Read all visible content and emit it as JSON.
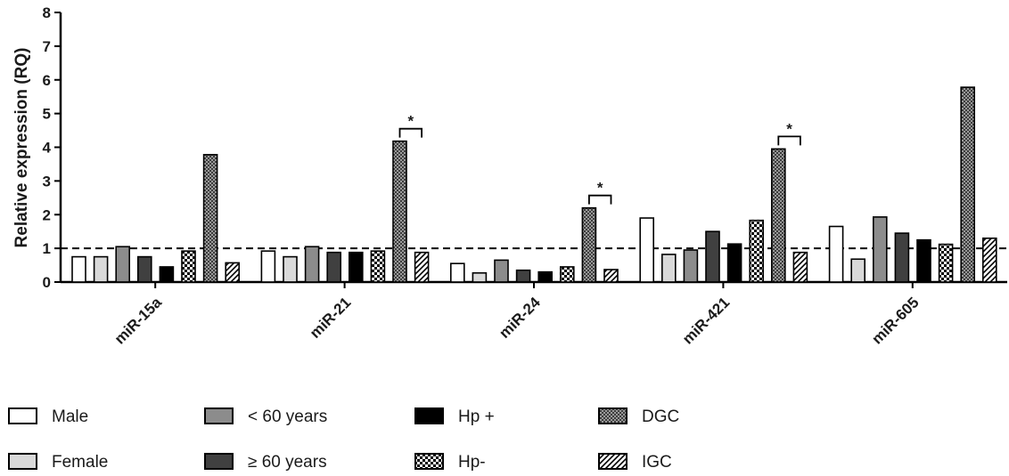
{
  "chart_data": {
    "type": "bar",
    "ylabel": "Relative expression (RQ)",
    "xlabel": "",
    "ylim": [
      0,
      8
    ],
    "yticks": [
      "0",
      "1",
      "2",
      "3",
      "4",
      "5",
      "6",
      "7",
      "8"
    ],
    "reference_line": 1,
    "categories": [
      "miR-15a",
      "miR-21",
      "miR-24",
      "miR-421",
      "miR-605"
    ],
    "series": [
      {
        "name": "Male",
        "values": [
          0.75,
          0.92,
          0.55,
          1.9,
          1.65
        ],
        "fill": "#ffffff",
        "pattern": "none"
      },
      {
        "name": "Female",
        "values": [
          0.75,
          0.75,
          0.27,
          0.82,
          0.68
        ],
        "fill": "#d9d9d9",
        "pattern": "none"
      },
      {
        "name": "< 60 years",
        "values": [
          1.05,
          1.05,
          0.65,
          0.95,
          1.93
        ],
        "fill": "#8c8c8c",
        "pattern": "none"
      },
      {
        "name": "≥ 60 years",
        "values": [
          0.75,
          0.88,
          0.35,
          1.5,
          1.45
        ],
        "fill": "#404040",
        "pattern": "none"
      },
      {
        "name": "Hp +",
        "values": [
          0.45,
          0.88,
          0.3,
          1.13,
          1.25
        ],
        "fill": "#000000",
        "pattern": "none"
      },
      {
        "name": "Hp-",
        "values": [
          0.92,
          0.92,
          0.45,
          1.83,
          1.12
        ],
        "fill": "#ffffff",
        "pattern": "checker"
      },
      {
        "name": "DGC",
        "values": [
          3.78,
          4.18,
          2.2,
          3.95,
          5.78
        ],
        "fill": "#9a9a9a",
        "pattern": "crosshatch"
      },
      {
        "name": "IGC",
        "values": [
          0.57,
          0.88,
          0.37,
          0.88,
          1.3
        ],
        "fill": "#ffffff",
        "pattern": "diagonal"
      }
    ],
    "significance": [
      {
        "category": "miR-21",
        "label": "*"
      },
      {
        "category": "miR-24",
        "label": "*"
      },
      {
        "category": "miR-421",
        "label": "*"
      }
    ],
    "legend_position": "bottom",
    "grid": false
  }
}
